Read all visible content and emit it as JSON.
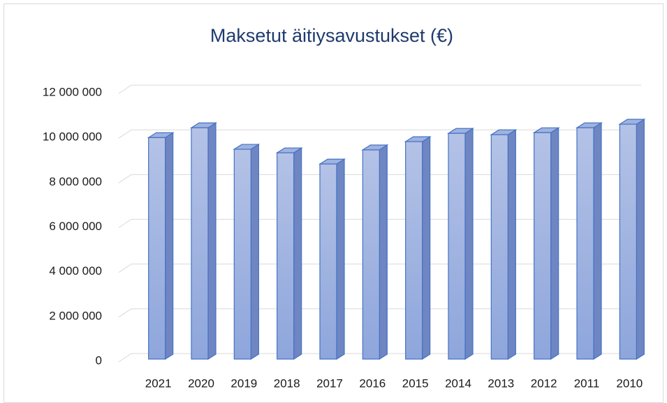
{
  "chart_data": {
    "type": "bar3d",
    "title": "Maksetut äitiysavustukset (€)",
    "categories": [
      "2021",
      "2020",
      "2019",
      "2018",
      "2017",
      "2016",
      "2015",
      "2014",
      "2013",
      "2012",
      "2011",
      "2010"
    ],
    "values": [
      9900000,
      10340000,
      9380000,
      9220000,
      8720000,
      9350000,
      9720000,
      10090000,
      10030000,
      10120000,
      10340000,
      10500000
    ],
    "color": "#8faadc",
    "ylim": [
      0,
      12000000
    ],
    "yticks": [
      {
        "value": 0,
        "label": "0"
      },
      {
        "value": 2000000,
        "label": "2 000 000"
      },
      {
        "value": 4000000,
        "label": "4 000 000"
      },
      {
        "value": 6000000,
        "label": "6 000 000"
      },
      {
        "value": 8000000,
        "label": "8 000 000"
      },
      {
        "value": 10000000,
        "label": "10 000 000"
      },
      {
        "value": 12000000,
        "label": "12 000 000"
      }
    ],
    "grid": true
  }
}
